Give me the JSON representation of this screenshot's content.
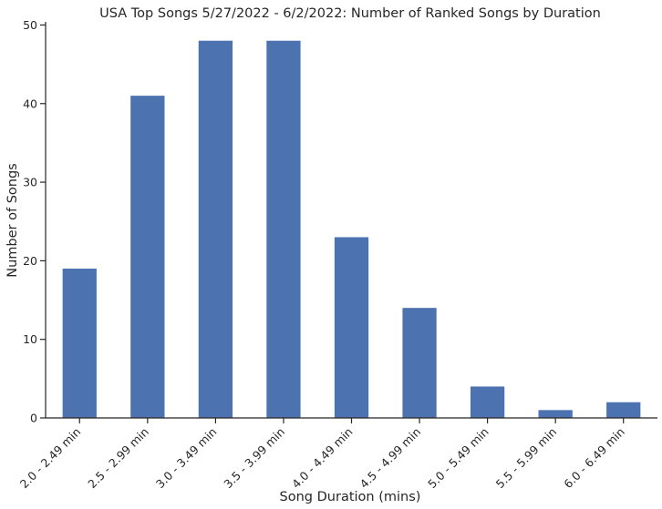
{
  "chart_data": {
    "type": "bar",
    "title": "USA Top Songs 5/27/2022 - 6/2/2022: Number of Ranked Songs by Duration",
    "xlabel": "Song Duration (mins)",
    "ylabel": "Number of Songs",
    "categories": [
      "2.0 - 2.49 min",
      "2.5 - 2.99 min",
      "3.0 - 3.49 min",
      "3.5 - 3.99 min",
      "4.0 - 4.49 min",
      "4.5 - 4.99 min",
      "5.0 - 5.49 min",
      "5.5 - 5.99 min",
      "6.0 - 6.49 min"
    ],
    "values": [
      19,
      41,
      48,
      48,
      23,
      14,
      4,
      1,
      2
    ],
    "ylim": [
      0,
      50.4
    ],
    "yticks": [
      0,
      10,
      20,
      30,
      40,
      50
    ],
    "grid": false,
    "bar_color": "#4c72b0",
    "axis_color": "#262626"
  }
}
